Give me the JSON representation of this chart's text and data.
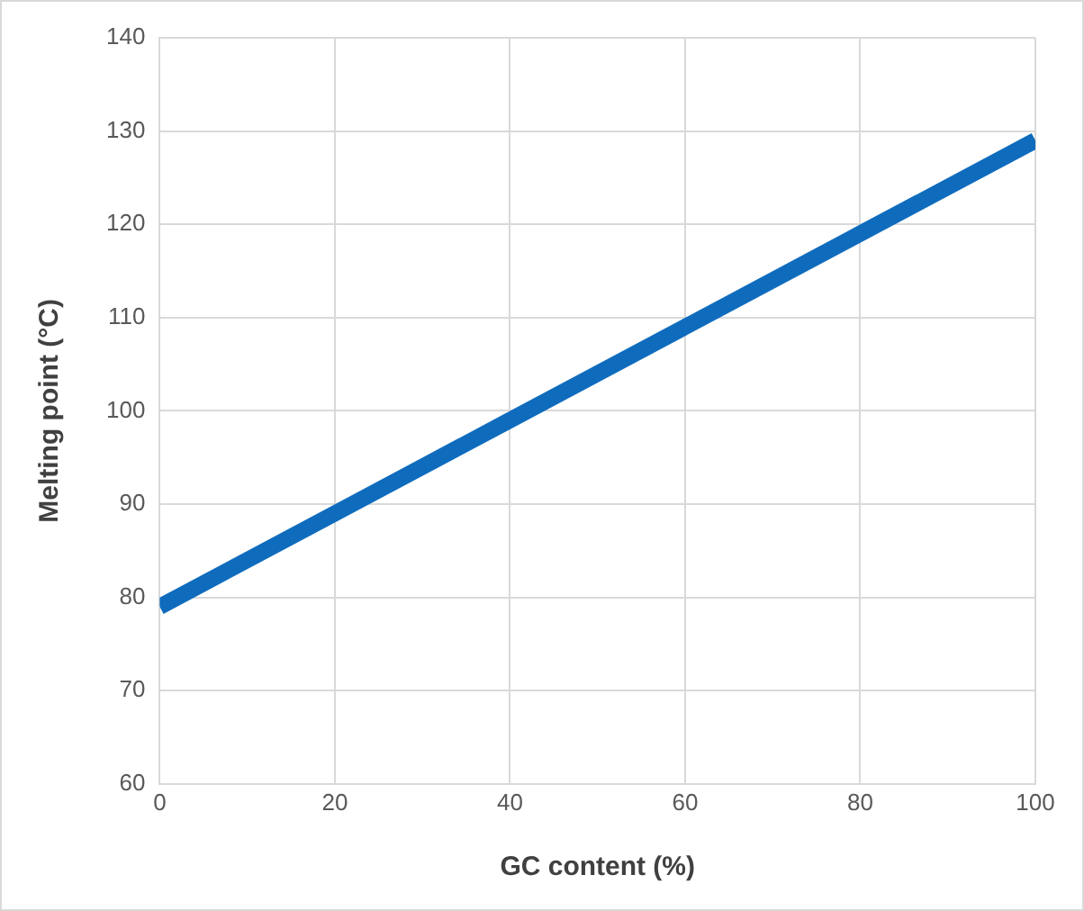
{
  "chart_data": {
    "type": "line",
    "xlabel": "GC content (%)",
    "ylabel": "Melting point (°C)",
    "x": [
      0,
      20,
      40,
      60,
      80,
      100
    ],
    "series": [
      {
        "color": "#0f6cbd",
        "values": [
          79,
          89,
          99,
          109,
          119,
          129
        ]
      }
    ],
    "xlim": [
      0,
      100
    ],
    "xticks": [
      0,
      20,
      40,
      60,
      80,
      100
    ],
    "ylim": [
      60,
      140
    ],
    "yticks": [
      60,
      70,
      80,
      90,
      100,
      110,
      120,
      130,
      140
    ],
    "grid": true,
    "legend": false,
    "marker": "none",
    "line_style": "solid"
  }
}
